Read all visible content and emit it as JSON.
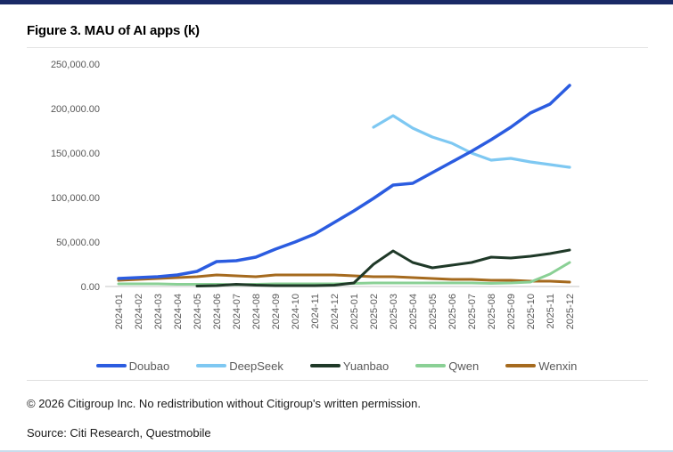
{
  "page": {
    "title": "Figure 3. MAU of AI apps (k)",
    "copyright": "© 2026 Citigroup Inc. No redistribution without Citigroup's written permission.",
    "source": "Source: Citi Research, Questmobile"
  },
  "colors": {
    "top_bar": "#1a2a66",
    "axis_text": "#595959",
    "baseline": "#d9d9d9",
    "bottom_edge": "#c9dcec"
  },
  "chart_data": {
    "type": "line",
    "title": "Figure 3. MAU of AI apps (k)",
    "xlabel": "",
    "ylabel": "",
    "x": [
      "2024-01",
      "2024-02",
      "2024-03",
      "2024-04",
      "2024-05",
      "2024-06",
      "2024-07",
      "2024-08",
      "2024-09",
      "2024-10",
      "2024-11",
      "2024-12",
      "2025-01",
      "2025-02",
      "2025-03",
      "2025-04",
      "2025-05",
      "2025-06",
      "2025-07",
      "2025-08",
      "2025-09",
      "2025-10",
      "2025-11",
      "2025-12"
    ],
    "y_ticks": [
      "250,000.00",
      "200,000.00",
      "150,000.00",
      "100,000.00",
      "50,000.00",
      "0.00"
    ],
    "y_tick_values": [
      250000,
      200000,
      150000,
      100000,
      50000,
      0
    ],
    "ylim": [
      0,
      250000
    ],
    "grid": false,
    "legend_position": "bottom",
    "series": [
      {
        "name": "Doubao",
        "color": "#2b5ce0",
        "width": 3.5,
        "values": [
          9000,
          10000,
          11000,
          13000,
          17000,
          28000,
          29000,
          33000,
          42000,
          50000,
          59000,
          72000,
          85000,
          99000,
          114000,
          116000,
          128000,
          140000,
          152000,
          165000,
          179000,
          195000,
          205000,
          226000
        ]
      },
      {
        "name": "DeepSeek",
        "color": "#7ec8f2",
        "width": 3.2,
        "values": [
          null,
          null,
          null,
          null,
          null,
          null,
          null,
          null,
          null,
          null,
          null,
          null,
          null,
          179000,
          192000,
          178000,
          168000,
          161000,
          150000,
          142000,
          144000,
          140000,
          137000,
          134000
        ]
      },
      {
        "name": "Yuanbao",
        "color": "#1f3928",
        "width": 3,
        "values": [
          null,
          null,
          null,
          null,
          500,
          1000,
          2500,
          1500,
          1000,
          1000,
          1000,
          1500,
          4000,
          25000,
          40000,
          27000,
          21000,
          24000,
          27000,
          33000,
          32000,
          34000,
          37000,
          41000
        ]
      },
      {
        "name": "Qwen",
        "color": "#8ad095",
        "width": 3,
        "values": [
          3000,
          3000,
          3000,
          2500,
          2500,
          2500,
          2000,
          2500,
          3000,
          3000,
          3000,
          3000,
          3500,
          4000,
          4000,
          4000,
          4000,
          4000,
          4000,
          3500,
          4000,
          5000,
          14000,
          27000
        ]
      },
      {
        "name": "Wenxin",
        "color": "#a56a1e",
        "width": 3,
        "values": [
          7000,
          8000,
          9000,
          10000,
          11000,
          13000,
          12000,
          11000,
          13000,
          13000,
          13000,
          13000,
          12000,
          11000,
          11000,
          10000,
          9000,
          8000,
          8000,
          7000,
          7000,
          6000,
          6000,
          5000
        ]
      }
    ],
    "draw_order": [
      "DeepSeek",
      "Wenxin",
      "Qwen",
      "Yuanbao",
      "Doubao"
    ]
  }
}
